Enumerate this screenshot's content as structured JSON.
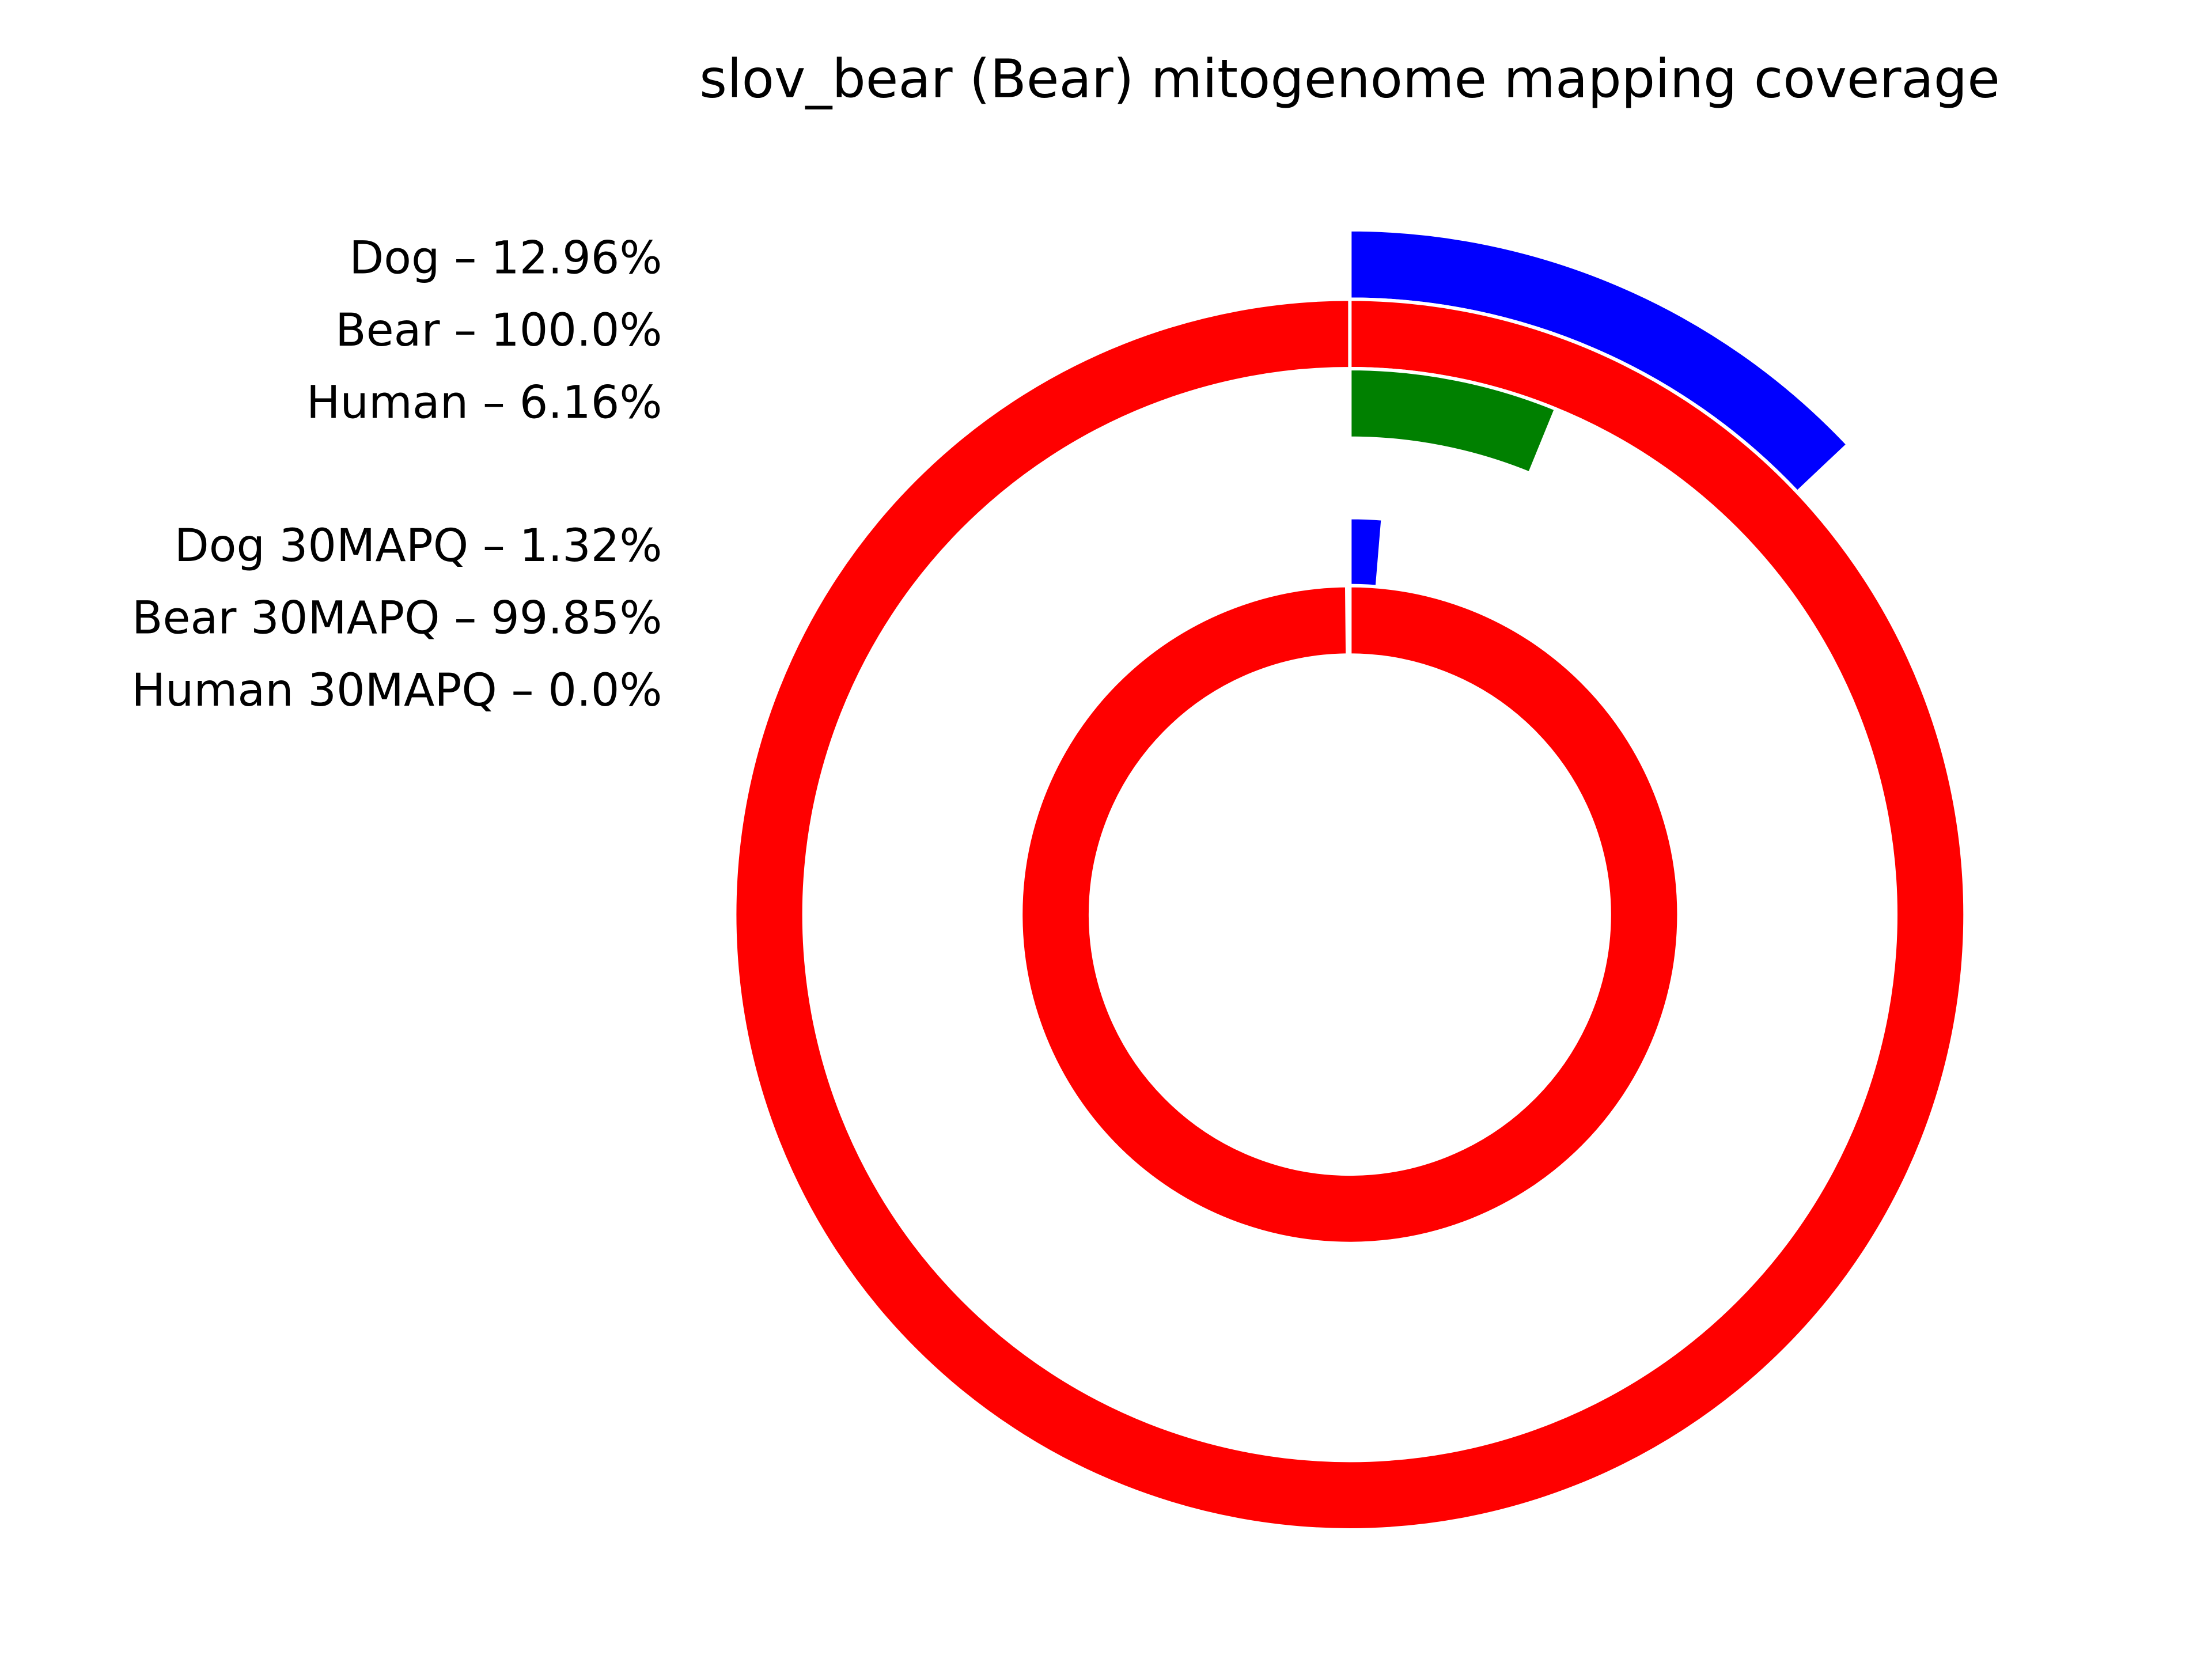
{
  "chart_data": {
    "type": "radial_bar",
    "title": "slov_bear (Bear) mitogenome mapping coverage",
    "categories": [
      "Dog",
      "Bear",
      "Human",
      "Dog 30MAPQ",
      "Bear 30MAPQ",
      "Human 30MAPQ"
    ],
    "values": [
      12.96,
      100.0,
      6.16,
      1.32,
      99.85,
      0.0
    ],
    "value_labels": [
      "Dog – 12.96%",
      "Bear – 100.0%",
      "Human – 6.16%",
      "Dog 30MAPQ – 1.32%",
      "Bear 30MAPQ – 99.85%",
      "Human 30MAPQ – 0.0%"
    ],
    "colors": [
      "#0000ff",
      "#ff0000",
      "#008000",
      "#0000ff",
      "#ff0000",
      "#008000"
    ],
    "ylim": [
      0,
      100
    ]
  }
}
